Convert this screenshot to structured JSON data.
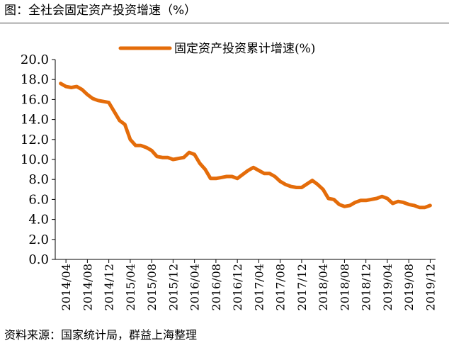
{
  "title": "图：全社会固定资产投资增速（%）",
  "source": "资料来源：国家统计局，群益上海整理",
  "chart_data": {
    "type": "line",
    "legend_position": "top",
    "ylim": [
      0,
      20
    ],
    "y_ticks": [
      "0.0",
      "2.0",
      "4.0",
      "6.0",
      "8.0",
      "10.0",
      "12.0",
      "14.0",
      "16.0",
      "18.0",
      "20.0"
    ],
    "x_tick_labels": [
      "2014/04",
      "2014/08",
      "2014/12",
      "2015/04",
      "2015/08",
      "2015/12",
      "2016/04",
      "2016/08",
      "2016/12",
      "2017/04",
      "2017/08",
      "2017/12",
      "2018/04",
      "2018/08",
      "2018/12",
      "2019/04",
      "2019/08",
      "2019/12"
    ],
    "grid": false,
    "series": [
      {
        "name": "固定资产投资累计增速(%)",
        "color": "#E46C0A",
        "x": [
          "2014/03",
          "2014/04",
          "2014/05",
          "2014/06",
          "2014/07",
          "2014/08",
          "2014/09",
          "2014/10",
          "2014/11",
          "2014/12",
          "2015/02",
          "2015/03",
          "2015/04",
          "2015/05",
          "2015/06",
          "2015/07",
          "2015/08",
          "2015/09",
          "2015/10",
          "2015/11",
          "2015/12",
          "2016/02",
          "2016/03",
          "2016/04",
          "2016/05",
          "2016/06",
          "2016/07",
          "2016/08",
          "2016/09",
          "2016/10",
          "2016/11",
          "2016/12",
          "2017/02",
          "2017/03",
          "2017/04",
          "2017/05",
          "2017/06",
          "2017/07",
          "2017/08",
          "2017/09",
          "2017/10",
          "2017/11",
          "2017/12",
          "2018/02",
          "2018/03",
          "2018/04",
          "2018/05",
          "2018/06",
          "2018/07",
          "2018/08",
          "2018/09",
          "2018/10",
          "2018/11",
          "2018/12",
          "2019/02",
          "2019/03",
          "2019/04",
          "2019/05",
          "2019/06",
          "2019/07",
          "2019/08",
          "2019/09",
          "2019/10",
          "2019/11",
          "2019/12"
        ],
        "values": [
          17.6,
          17.3,
          17.2,
          17.3,
          17.0,
          16.5,
          16.1,
          15.9,
          15.8,
          15.7,
          13.9,
          13.5,
          12.0,
          11.4,
          11.4,
          11.2,
          10.9,
          10.3,
          10.2,
          10.2,
          10.0,
          10.2,
          10.7,
          10.5,
          9.6,
          9.0,
          8.1,
          8.1,
          8.2,
          8.3,
          8.3,
          8.1,
          8.9,
          9.2,
          8.9,
          8.6,
          8.6,
          8.3,
          7.8,
          7.5,
          7.3,
          7.2,
          7.2,
          7.9,
          7.5,
          7.0,
          6.1,
          6.0,
          5.5,
          5.3,
          5.4,
          5.7,
          5.9,
          5.9,
          6.1,
          6.3,
          6.1,
          5.6,
          5.8,
          5.7,
          5.5,
          5.4,
          5.2,
          5.2,
          5.4
        ]
      }
    ]
  }
}
